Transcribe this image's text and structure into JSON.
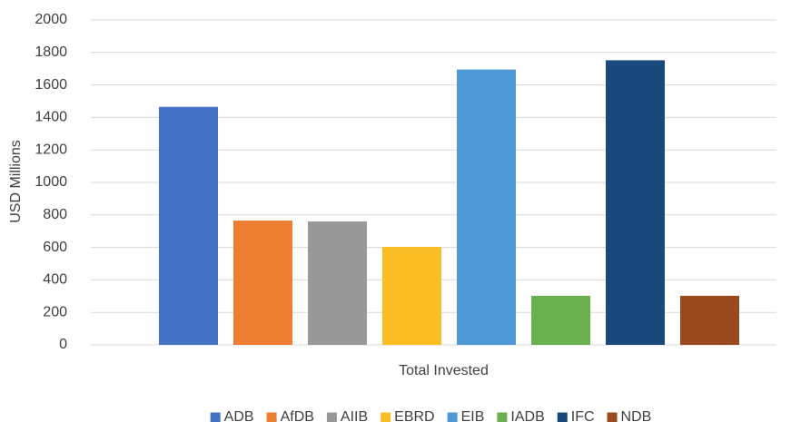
{
  "chart_data": {
    "type": "bar",
    "categories": [
      "Total Invested"
    ],
    "y_label": "USD Millions",
    "series": [
      {
        "name": "ADB",
        "color": "#4472c4",
        "values": [
          1465
        ]
      },
      {
        "name": "AfDB",
        "color": "#ed7d31",
        "values": [
          765
        ]
      },
      {
        "name": "AIIB",
        "color": "#999999",
        "values": [
          760
        ]
      },
      {
        "name": "EBRD",
        "color": "#fbbd24",
        "values": [
          603
        ]
      },
      {
        "name": "EIB",
        "color": "#4e98d6",
        "values": [
          1695
        ]
      },
      {
        "name": "IADB",
        "color": "#6ab04f",
        "values": [
          302
        ]
      },
      {
        "name": "IFC",
        "color": "#1a4a7c",
        "values": [
          1752
        ]
      },
      {
        "name": "NDB",
        "color": "#9a4a1e",
        "values": [
          302
        ]
      }
    ],
    "ylim": [
      0,
      2000
    ],
    "yticks": [
      0,
      200,
      400,
      600,
      800,
      1000,
      1200,
      1400,
      1600,
      1800,
      2000
    ],
    "grid": true,
    "legend": "bottom"
  }
}
